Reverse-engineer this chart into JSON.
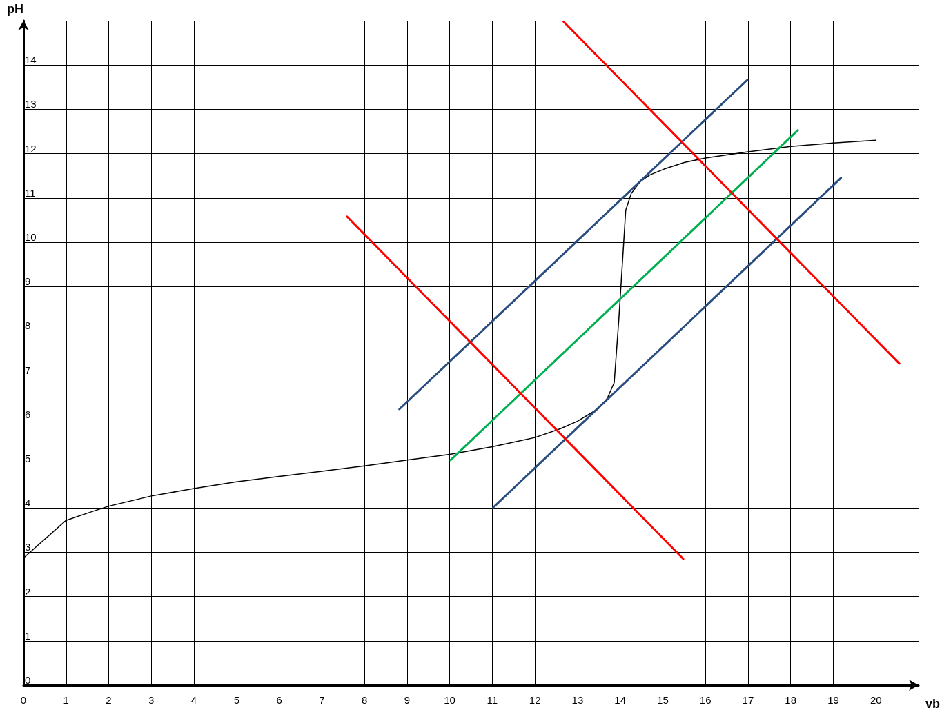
{
  "chart_data": {
    "type": "line",
    "xlabel": "vb",
    "ylabel": "pH",
    "xlim": [
      0,
      21
    ],
    "ylim": [
      0,
      15
    ],
    "xticks": [
      0,
      1,
      2,
      3,
      4,
      5,
      6,
      7,
      8,
      9,
      10,
      11,
      12,
      13,
      14,
      15,
      16,
      17,
      18,
      19,
      20
    ],
    "yticks": [
      0,
      1,
      2,
      3,
      4,
      5,
      6,
      7,
      8,
      9,
      10,
      11,
      12,
      13,
      14
    ],
    "grid": true,
    "marker": "none",
    "line_style": "solid",
    "series": [
      {
        "color": "#000000",
        "x": [
          0,
          1,
          1.55,
          2,
          3,
          4,
          5,
          6,
          7,
          8,
          9,
          10,
          11,
          12,
          12.6,
          13,
          13.5,
          13.7,
          13.86,
          13.97,
          14.07,
          14.13,
          14.26,
          14.47,
          14.7,
          15.03,
          15.5,
          16,
          17,
          18,
          19,
          20
        ],
        "values": [
          2.87,
          3.72,
          3.9,
          4.04,
          4.27,
          4.44,
          4.59,
          4.71,
          4.83,
          4.95,
          5.08,
          5.21,
          5.38,
          5.59,
          5.79,
          5.96,
          6.25,
          6.48,
          6.83,
          8.28,
          9.8,
          10.72,
          11.1,
          11.37,
          11.52,
          11.65,
          11.8,
          11.9,
          12.04,
          12.16,
          12.24,
          12.3
        ]
      },
      {
        "color": "#2a4d80",
        "x": [
          8.82,
          16.98
        ],
        "values": [
          6.23,
          13.66
        ]
      },
      {
        "color": "#2a4d80",
        "x": [
          11.02,
          19.18
        ],
        "values": [
          4.01,
          11.45
        ]
      },
      {
        "color": "#00b050",
        "x": [
          10.02,
          18.17
        ],
        "values": [
          5.08,
          12.53
        ]
      },
      {
        "color": "#ff0000",
        "x": [
          7.59,
          15.48
        ],
        "values": [
          10.58,
          2.85
        ]
      },
      {
        "color": "#ff0000",
        "x": [
          12.67,
          20.55
        ],
        "values": [
          14.98,
          7.26
        ]
      }
    ]
  }
}
